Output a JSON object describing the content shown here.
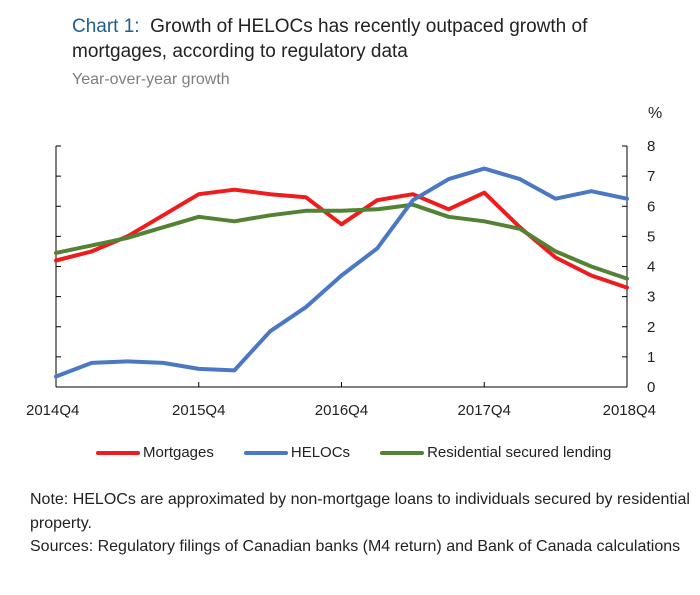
{
  "header": {
    "chart_label": "Chart 1:",
    "title": "Growth of HELOCs has recently outpaced growth of mortgages, according to regulatory data",
    "subtitle": "Year-over-year growth",
    "unit": "%"
  },
  "footer": {
    "note": "Note: HELOCs are approximated by non-mortgage loans to individuals secured by residential property.",
    "sources": "Sources: Regulatory filings of Canadian banks (M4 return) and Bank of Canada calculations"
  },
  "colors": {
    "mortgages": "#ee1c1c",
    "helocs": "#4a78c4",
    "residential": "#548235",
    "axis": "#000000"
  },
  "chart_data": {
    "type": "line",
    "title": "Growth of HELOCs has recently outpaced growth of mortgages, according to regulatory data",
    "subtitle": "Year-over-year growth",
    "ylabel": "%",
    "ylim": [
      0,
      8
    ],
    "yticks": [
      0,
      1,
      2,
      3,
      4,
      5,
      6,
      7,
      8
    ],
    "x": [
      "2014Q4",
      "2015Q1",
      "2015Q2",
      "2015Q3",
      "2015Q4",
      "2016Q1",
      "2016Q2",
      "2016Q3",
      "2016Q4",
      "2017Q1",
      "2017Q2",
      "2017Q3",
      "2017Q4",
      "2018Q1",
      "2018Q2",
      "2018Q3",
      "2018Q4"
    ],
    "xtick_labels": [
      "2014Q4",
      "2015Q4",
      "2016Q4",
      "2017Q4",
      "2018Q4"
    ],
    "legend_position": "bottom",
    "series": [
      {
        "name": "Mortgages",
        "key": "mortgages",
        "values": [
          4.2,
          4.5,
          5.0,
          5.7,
          6.4,
          6.55,
          6.4,
          6.3,
          5.4,
          6.2,
          6.4,
          5.9,
          6.45,
          5.3,
          4.3,
          3.7,
          3.3
        ]
      },
      {
        "name": "HELOCs",
        "key": "helocs",
        "values": [
          0.35,
          0.8,
          0.85,
          0.8,
          0.6,
          0.55,
          1.85,
          2.65,
          3.7,
          4.6,
          6.2,
          6.9,
          7.25,
          6.9,
          6.25,
          6.5,
          6.25
        ]
      },
      {
        "name": "Residential secured lending",
        "key": "residential",
        "values": [
          4.45,
          4.7,
          4.95,
          5.3,
          5.65,
          5.5,
          5.7,
          5.85,
          5.85,
          5.9,
          6.05,
          5.65,
          5.5,
          5.25,
          4.5,
          4.0,
          3.6
        ]
      }
    ]
  }
}
